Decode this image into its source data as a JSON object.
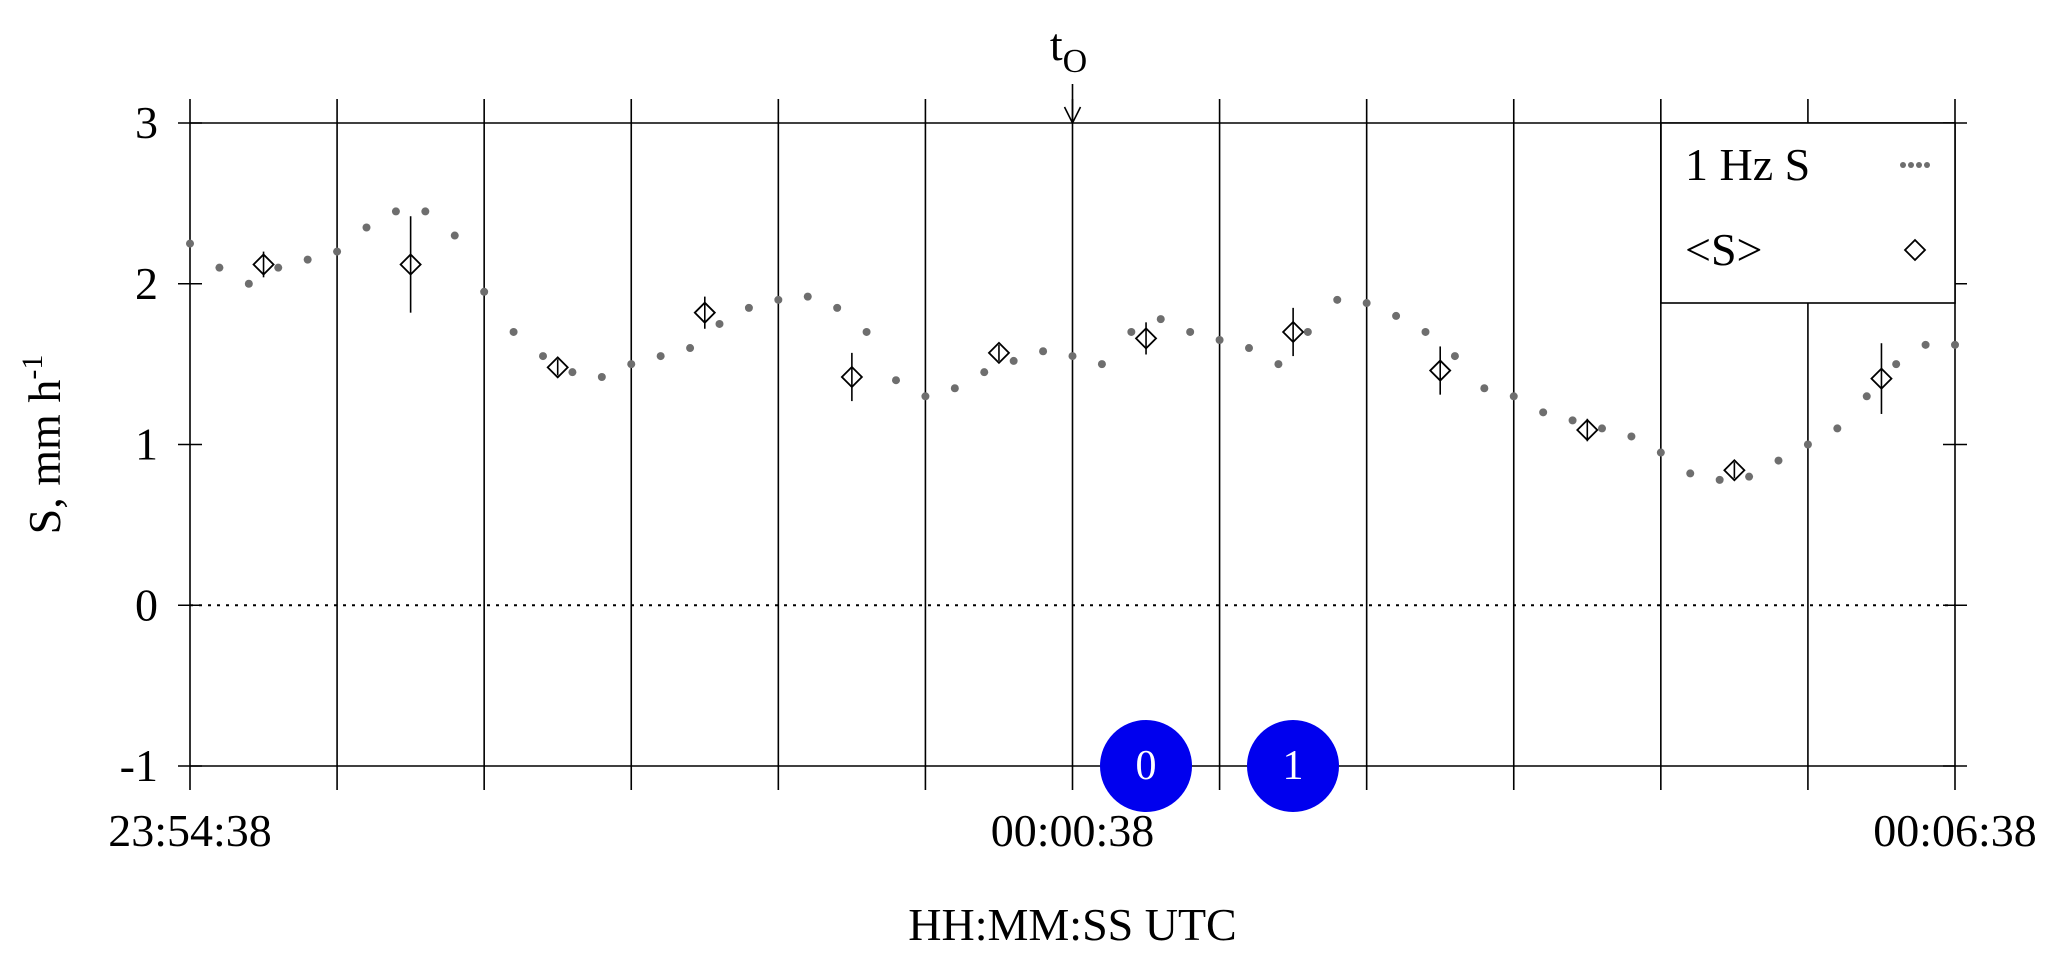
{
  "chart_data": {
    "type": "scatter",
    "xlabel": "HH:MM:SS UTC",
    "ylabel": {
      "text": "S, mm h",
      "superscript": "-1"
    },
    "annotation": {
      "text": "t",
      "subscript": "O",
      "x": 6
    },
    "xlim": [
      0,
      12
    ],
    "xticks": [
      {
        "value": 0,
        "label": "23:54:38"
      },
      {
        "value": 1,
        "label": null
      },
      {
        "value": 2,
        "label": null
      },
      {
        "value": 3,
        "label": null
      },
      {
        "value": 4,
        "label": null
      },
      {
        "value": 5,
        "label": null
      },
      {
        "value": 6,
        "label": "00:00:38"
      },
      {
        "value": 7,
        "label": null
      },
      {
        "value": 8,
        "label": null
      },
      {
        "value": 9,
        "label": null
      },
      {
        "value": 10,
        "label": null
      },
      {
        "value": 11,
        "label": null
      },
      {
        "value": 12,
        "label": "00:06:38"
      }
    ],
    "ylim": [
      -1,
      3
    ],
    "yticks": [
      -1,
      0,
      1,
      2,
      3
    ],
    "grid": "x",
    "zero_line": "dotted",
    "legend": "upper right",
    "series": [
      {
        "name": "1 Hz S",
        "color": "#6e6e6e",
        "marker": "dot",
        "x": [
          0,
          0.2,
          0.4,
          0.6,
          0.8,
          1.0,
          1.2,
          1.4,
          1.6,
          1.8,
          2.0,
          2.2,
          2.4,
          2.6,
          2.8,
          3.0,
          3.2,
          3.4,
          3.6,
          3.8,
          4.0,
          4.2,
          4.4,
          4.6,
          4.8,
          5.0,
          5.2,
          5.4,
          5.6,
          5.8,
          6.0,
          6.2,
          6.4,
          6.6,
          6.8,
          7.0,
          7.2,
          7.4,
          7.6,
          7.8,
          8.0,
          8.2,
          8.4,
          8.6,
          8.8,
          9.0,
          9.2,
          9.4,
          9.6,
          9.8,
          10.0,
          10.2,
          10.4,
          10.6,
          10.8,
          11.0,
          11.2,
          11.4,
          11.6,
          11.8,
          12.0
        ],
        "values": [
          2.25,
          2.1,
          2.0,
          2.1,
          2.15,
          2.2,
          2.35,
          2.45,
          2.45,
          2.3,
          1.95,
          1.7,
          1.55,
          1.45,
          1.42,
          1.5,
          1.55,
          1.6,
          1.75,
          1.85,
          1.9,
          1.92,
          1.85,
          1.7,
          1.4,
          1.3,
          1.35,
          1.45,
          1.52,
          1.58,
          1.55,
          1.5,
          1.7,
          1.78,
          1.7,
          1.65,
          1.6,
          1.5,
          1.7,
          1.9,
          1.88,
          1.8,
          1.7,
          1.55,
          1.35,
          1.3,
          1.2,
          1.15,
          1.1,
          1.05,
          0.95,
          0.82,
          0.78,
          0.8,
          0.9,
          1.0,
          1.1,
          1.3,
          1.5,
          1.62,
          1.62
        ]
      },
      {
        "name": "<S>",
        "color": "#000000",
        "marker": "diamond",
        "x": [
          0.5,
          1.5,
          2.5,
          3.5,
          4.5,
          5.5,
          6.5,
          7.5,
          8.5,
          9.5,
          10.5,
          11.5
        ],
        "values": [
          2.12,
          2.12,
          1.48,
          1.82,
          1.42,
          1.57,
          1.66,
          1.7,
          1.46,
          1.09,
          0.84,
          1.41
        ],
        "errors": [
          0.08,
          0.3,
          0.05,
          0.1,
          0.15,
          0.05,
          0.1,
          0.15,
          0.15,
          0.07,
          0.05,
          0.22
        ]
      }
    ],
    "badges": [
      "0",
      "1"
    ]
  }
}
